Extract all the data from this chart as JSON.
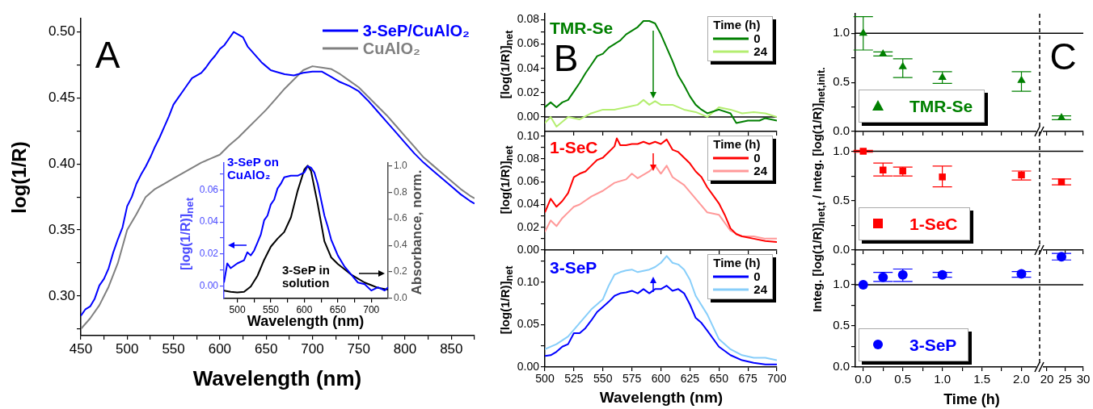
{
  "chart_data": [
    {
      "type": "line",
      "xlabel": "Wavelength (nm)",
      "ylabel": "log(1/R)",
      "annotations": [
        "A"
      ],
      "legend": "top right",
      "xlim": [
        450,
        875
      ],
      "ylim": [
        0.27,
        0.51
      ],
      "xticks": [
        450,
        {
          "value": 475,
          "label": null
        },
        500,
        {
          "value": 525,
          "label": null
        },
        550,
        {
          "value": 575,
          "label": null
        },
        600,
        {
          "value": 625,
          "label": null
        },
        650,
        {
          "value": 675,
          "label": null
        },
        700,
        {
          "value": 725,
          "label": null
        },
        750,
        {
          "value": 775,
          "label": null
        },
        800,
        {
          "value": 825,
          "label": null
        },
        850,
        {
          "value": 875,
          "label": null
        }
      ],
      "yticks": [
        {
          "value": 0.275,
          "label": null
        },
        {
          "value": 0.3,
          "label": "0.30"
        },
        {
          "value": 0.325,
          "label": null
        },
        {
          "value": 0.35,
          "label": "0.35"
        },
        {
          "value": 0.375,
          "label": null
        },
        {
          "value": 0.4,
          "label": "0.40"
        },
        {
          "value": 0.425,
          "label": null
        },
        {
          "value": 0.45,
          "label": "0.45"
        },
        {
          "value": 0.475,
          "label": null
        },
        {
          "value": 0.5,
          "label": "0.50"
        }
      ],
      "series": [
        {
          "name": "3-SeP/CuAlO₂",
          "color": "#0000ff",
          "x": [
            450,
            455,
            460,
            465,
            470,
            475,
            480,
            485,
            490,
            495,
            500,
            505,
            510,
            515,
            520,
            525,
            530,
            535,
            540,
            545,
            550,
            555,
            560,
            565,
            570,
            575,
            580,
            585,
            590,
            595,
            600,
            605,
            610,
            615,
            620,
            625,
            630,
            635,
            640,
            645,
            650,
            655,
            660,
            670,
            680,
            690,
            700,
            710,
            720,
            730,
            740,
            750,
            760,
            770,
            780,
            790,
            800,
            810,
            820,
            830,
            840,
            850,
            860,
            870,
            875
          ],
          "values": [
            0.285,
            0.29,
            0.292,
            0.298,
            0.308,
            0.313,
            0.321,
            0.333,
            0.343,
            0.352,
            0.368,
            0.375,
            0.385,
            0.392,
            0.398,
            0.405,
            0.413,
            0.42,
            0.428,
            0.436,
            0.445,
            0.45,
            0.455,
            0.46,
            0.465,
            0.467,
            0.469,
            0.473,
            0.478,
            0.482,
            0.487,
            0.49,
            0.495,
            0.5,
            0.498,
            0.496,
            0.489,
            0.485,
            0.481,
            0.477,
            0.474,
            0.471,
            0.47,
            0.468,
            0.467,
            0.469,
            0.47,
            0.47,
            0.466,
            0.462,
            0.459,
            0.455,
            0.448,
            0.44,
            0.432,
            0.424,
            0.416,
            0.408,
            0.401,
            0.395,
            0.389,
            0.383,
            0.377,
            0.372,
            0.37
          ]
        },
        {
          "name": "CuAlO₂",
          "color": "#808080",
          "x": [
            450,
            460,
            470,
            480,
            490,
            500,
            510,
            520,
            530,
            540,
            550,
            560,
            570,
            580,
            590,
            600,
            610,
            620,
            630,
            640,
            650,
            660,
            670,
            680,
            690,
            700,
            710,
            720,
            730,
            740,
            750,
            760,
            770,
            780,
            790,
            800,
            810,
            820,
            830,
            840,
            850,
            860,
            870,
            875
          ],
          "values": [
            0.275,
            0.283,
            0.293,
            0.307,
            0.325,
            0.35,
            0.362,
            0.375,
            0.381,
            0.385,
            0.389,
            0.393,
            0.397,
            0.401,
            0.404,
            0.407,
            0.414,
            0.42,
            0.427,
            0.434,
            0.441,
            0.449,
            0.457,
            0.464,
            0.471,
            0.474,
            0.473,
            0.472,
            0.468,
            0.463,
            0.458,
            0.451,
            0.444,
            0.437,
            0.429,
            0.421,
            0.413,
            0.405,
            0.399,
            0.393,
            0.387,
            0.381,
            0.376,
            0.374
          ]
        }
      ]
    },
    {
      "type": "line",
      "xlabel": "Wavelength (nm)",
      "ylabel": "[log(1/R)]$_{net}$",
      "y2label": "Absorbance, norm.",
      "xlim": [
        480,
        725
      ],
      "ylim": [
        -0.008,
        0.077
      ],
      "y2lim": [
        0,
        1.02
      ],
      "xticks": [
        500,
        {
          "value": 525,
          "label": null
        },
        550,
        {
          "value": 575,
          "label": null
        },
        600,
        {
          "value": 625,
          "label": null
        },
        650,
        {
          "value": 675,
          "label": null
        },
        700
      ],
      "yticks": [
        {
          "value": 0,
          "label": "0.00"
        },
        {
          "value": 0.01,
          "label": null
        },
        {
          "value": 0.02,
          "label": "0.02"
        },
        {
          "value": 0.03,
          "label": null
        },
        {
          "value": 0.04,
          "label": "0.04"
        },
        {
          "value": 0.05,
          "label": null
        },
        {
          "value": 0.06,
          "label": "0.06"
        },
        {
          "value": 0.07,
          "label": null
        }
      ],
      "y2ticks": [
        {
          "value": 0,
          "label": "0.0"
        },
        {
          "value": 0.2,
          "label": "0.2"
        },
        {
          "value": 0.4,
          "label": "0.4"
        },
        {
          "value": 0.6,
          "label": "0.6"
        },
        {
          "value": 0.8,
          "label": "0.8"
        },
        {
          "value": 1,
          "label": "1.0"
        }
      ],
      "series": [
        {
          "name": "3-SeP on CuAlO₂",
          "color": "#0000ff",
          "x": [
            480,
            485,
            490,
            500,
            510,
            515,
            520,
            525,
            530,
            535,
            540,
            545,
            550,
            555,
            560,
            565,
            570,
            580,
            590,
            600,
            605,
            610,
            615,
            620,
            625,
            630,
            635,
            640,
            645,
            650,
            660,
            670,
            680,
            690,
            700,
            710,
            720,
            725
          ],
          "values": [
            0.002,
            0.014,
            0.011,
            0.014,
            0.016,
            0.021,
            0.019,
            0.022,
            0.027,
            0.032,
            0.041,
            0.044,
            0.051,
            0.054,
            0.061,
            0.064,
            0.068,
            0.069,
            0.069,
            0.071,
            0.075,
            0.074,
            0.071,
            0.064,
            0.054,
            0.044,
            0.037,
            0.029,
            0.024,
            0.019,
            0.012,
            0.007,
            0.002,
            0.001,
            -0.003,
            -0.001,
            -0.003,
            -0.001
          ]
        },
        {
          "name": "3-SeP in solution",
          "color": "#000000",
          "axis": "y2",
          "x": [
            480,
            490,
            500,
            510,
            520,
            530,
            540,
            550,
            560,
            570,
            580,
            590,
            600,
            605,
            610,
            620,
            630,
            640,
            650,
            660,
            670,
            680,
            690,
            700,
            710,
            725
          ],
          "values": [
            0.06,
            0.05,
            0.046,
            0.05,
            0.09,
            0.17,
            0.29,
            0.39,
            0.45,
            0.5,
            0.61,
            0.81,
            0.97,
            1.0,
            0.96,
            0.71,
            0.43,
            0.31,
            0.26,
            0.22,
            0.18,
            0.15,
            0.12,
            0.1,
            0.08,
            0.066
          ]
        }
      ]
    },
    {
      "type": "line",
      "title": "TMR-Se",
      "ylabel": "[log(1/R)]$_{net}$",
      "annotations": [
        "B"
      ],
      "legend": "top right",
      "legend_title": "Time (h)",
      "tick_labels": "y",
      "xlim": [
        500,
        700
      ],
      "ylim": [
        -0.012,
        0.085
      ],
      "xticks": [
        {
          "value": 500,
          "label": null
        },
        {
          "value": 525,
          "label": null
        },
        {
          "value": 550,
          "label": null
        },
        {
          "value": 575,
          "label": null
        },
        {
          "value": 600,
          "label": null
        },
        {
          "value": 625,
          "label": null
        },
        {
          "value": 650,
          "label": null
        },
        {
          "value": 675,
          "label": null
        },
        {
          "value": 700,
          "label": null
        }
      ],
      "yticks": [
        {
          "value": 0,
          "label": "0.00"
        },
        {
          "value": 0.01,
          "label": null
        },
        {
          "value": 0.02,
          "label": "0.02"
        },
        {
          "value": 0.03,
          "label": null
        },
        {
          "value": 0.04,
          "label": "0.04"
        },
        {
          "value": 0.05,
          "label": null
        },
        {
          "value": 0.06,
          "label": "0.06"
        },
        {
          "value": 0.07,
          "label": null
        },
        {
          "value": 0.08,
          "label": "0.08"
        }
      ],
      "ref_lines": [
        {
          "axis": "y",
          "value": 0
        }
      ],
      "series": [
        {
          "name": "0",
          "color": "#007f00",
          "x": [
            500,
            505,
            510,
            515,
            520,
            525,
            530,
            535,
            540,
            545,
            550,
            555,
            560,
            565,
            570,
            575,
            580,
            585,
            590,
            595,
            600,
            605,
            610,
            615,
            620,
            625,
            630,
            635,
            640,
            650,
            660,
            665,
            675,
            685,
            690,
            700
          ],
          "values": [
            0.008,
            0.012,
            0.008,
            0.012,
            0.014,
            0.021,
            0.028,
            0.036,
            0.043,
            0.05,
            0.052,
            0.057,
            0.06,
            0.063,
            0.068,
            0.071,
            0.074,
            0.079,
            0.079,
            0.077,
            0.068,
            0.057,
            0.046,
            0.034,
            0.026,
            0.017,
            0.01,
            0.006,
            0.003,
            0.006,
            0.003,
            -0.005,
            -0.003,
            -0.003,
            -0.001,
            -0.003
          ]
        },
        {
          "name": "24",
          "color": "#b4ee70",
          "x": [
            500,
            505,
            510,
            520,
            530,
            540,
            550,
            560,
            570,
            580,
            585,
            590,
            595,
            600,
            610,
            620,
            630,
            640,
            650,
            660,
            670,
            680,
            690,
            700
          ],
          "values": [
            -0.005,
            0.0,
            -0.008,
            0.0,
            -0.002,
            0.003,
            0.006,
            0.006,
            0.008,
            0.01,
            0.014,
            0.01,
            0.013,
            0.01,
            0.01,
            0.006,
            0.004,
            0.0,
            0.008,
            0.006,
            0.003,
            0.004,
            0.003,
            0.0
          ]
        }
      ]
    },
    {
      "type": "line",
      "title": "1-SeC",
      "ylabel": "[log(1/R)]$_{net}$",
      "legend": "top right",
      "legend_title": "Time (h)",
      "tick_labels": "y",
      "xlim": [
        500,
        700
      ],
      "ylim": [
        0,
        0.104
      ],
      "xticks": [
        {
          "value": 500,
          "label": null
        },
        {
          "value": 525,
          "label": null
        },
        {
          "value": 550,
          "label": null
        },
        {
          "value": 575,
          "label": null
        },
        {
          "value": 600,
          "label": null
        },
        {
          "value": 625,
          "label": null
        },
        {
          "value": 650,
          "label": null
        },
        {
          "value": 675,
          "label": null
        },
        {
          "value": 700,
          "label": null
        }
      ],
      "yticks": [
        {
          "value": 0,
          "label": "0.00"
        },
        {
          "value": 0.01,
          "label": null
        },
        {
          "value": 0.02,
          "label": "0.02"
        },
        {
          "value": 0.03,
          "label": null
        },
        {
          "value": 0.04,
          "label": "0.04"
        },
        {
          "value": 0.05,
          "label": null
        },
        {
          "value": 0.06,
          "label": "0.06"
        },
        {
          "value": 0.07,
          "label": null
        },
        {
          "value": 0.08,
          "label": "0.08"
        },
        {
          "value": 0.09,
          "label": null
        },
        {
          "value": 0.1,
          "label": "0.10"
        }
      ],
      "series": [
        {
          "name": "0",
          "color": "#ff0000",
          "x": [
            500,
            505,
            510,
            515,
            520,
            525,
            530,
            535,
            540,
            545,
            550,
            555,
            560,
            562,
            565,
            570,
            575,
            580,
            585,
            590,
            595,
            600,
            605,
            610,
            615,
            620,
            625,
            630,
            635,
            640,
            645,
            650,
            655,
            660,
            665,
            670,
            680,
            690,
            700
          ],
          "values": [
            0.033,
            0.045,
            0.038,
            0.043,
            0.05,
            0.064,
            0.067,
            0.069,
            0.074,
            0.079,
            0.081,
            0.086,
            0.091,
            0.098,
            0.092,
            0.092,
            0.093,
            0.093,
            0.095,
            0.093,
            0.095,
            0.093,
            0.097,
            0.088,
            0.086,
            0.081,
            0.076,
            0.069,
            0.064,
            0.055,
            0.048,
            0.041,
            0.031,
            0.019,
            0.014,
            0.012,
            0.01,
            0.008,
            0.007
          ]
        },
        {
          "name": "24",
          "color": "#ff9999",
          "x": [
            500,
            505,
            510,
            515,
            520,
            525,
            530,
            540,
            550,
            560,
            570,
            575,
            580,
            590,
            595,
            600,
            605,
            610,
            620,
            630,
            640,
            650,
            660,
            670,
            680,
            690,
            700
          ],
          "values": [
            0.016,
            0.026,
            0.021,
            0.028,
            0.033,
            0.038,
            0.04,
            0.047,
            0.052,
            0.059,
            0.062,
            0.067,
            0.063,
            0.069,
            0.074,
            0.067,
            0.074,
            0.064,
            0.057,
            0.045,
            0.033,
            0.031,
            0.017,
            0.012,
            0.012,
            0.01,
            0.01
          ]
        }
      ]
    },
    {
      "type": "line",
      "title": "3-SeP",
      "xlabel": "Wavelength (nm)",
      "ylabel": "[log(1/R)]$_{net}$",
      "legend": "top right",
      "legend_title": "Time (h)",
      "xlim": [
        500,
        700
      ],
      "ylim": [
        0,
        0.138
      ],
      "xticks": [
        500,
        525,
        550,
        575,
        600,
        625,
        650,
        675,
        700
      ],
      "yticks": [
        {
          "value": 0,
          "label": "0.00"
        },
        {
          "value": 0.025,
          "label": null
        },
        {
          "value": 0.05,
          "label": "0.05"
        },
        {
          "value": 0.075,
          "label": null
        },
        {
          "value": 0.1,
          "label": "0.10"
        },
        {
          "value": 0.125,
          "label": null
        }
      ],
      "series": [
        {
          "name": "0",
          "color": "#0000ff",
          "x": [
            500,
            505,
            510,
            515,
            520,
            525,
            530,
            535,
            540,
            545,
            550,
            555,
            560,
            565,
            570,
            575,
            580,
            585,
            590,
            595,
            600,
            605,
            610,
            615,
            620,
            625,
            630,
            635,
            640,
            650,
            660,
            670,
            680,
            690,
            700
          ],
          "values": [
            0.013,
            0.014,
            0.018,
            0.024,
            0.027,
            0.04,
            0.04,
            0.046,
            0.055,
            0.065,
            0.071,
            0.077,
            0.084,
            0.087,
            0.088,
            0.09,
            0.087,
            0.092,
            0.087,
            0.092,
            0.092,
            0.096,
            0.09,
            0.092,
            0.087,
            0.074,
            0.058,
            0.052,
            0.043,
            0.024,
            0.014,
            0.008,
            0.005,
            0.003,
            0.003
          ]
        },
        {
          "name": "24",
          "color": "#87cefa",
          "x": [
            500,
            510,
            520,
            530,
            540,
            550,
            555,
            560,
            565,
            570,
            575,
            580,
            590,
            595,
            600,
            605,
            610,
            615,
            620,
            625,
            630,
            640,
            650,
            660,
            670,
            680,
            690,
            700
          ],
          "values": [
            0.021,
            0.027,
            0.036,
            0.052,
            0.068,
            0.08,
            0.096,
            0.109,
            0.112,
            0.114,
            0.115,
            0.112,
            0.115,
            0.118,
            0.123,
            0.131,
            0.123,
            0.121,
            0.115,
            0.103,
            0.084,
            0.062,
            0.033,
            0.021,
            0.014,
            0.011,
            0.011,
            0.008
          ]
        }
      ]
    },
    {
      "type": "scatter",
      "marker": "triangle",
      "legend": "bottom left",
      "tick_labels": "y",
      "xlim": [
        -0.1,
        2.23
      ],
      "ylim": [
        0,
        1.2
      ],
      "xticks": [
        {
          "value": 0,
          "label": null
        },
        {
          "value": 0.25,
          "label": null
        },
        {
          "value": 0.5,
          "label": null
        },
        {
          "value": 0.75,
          "label": null
        },
        {
          "value": 1,
          "label": null
        },
        {
          "value": 1.25,
          "label": null
        },
        {
          "value": 1.5,
          "label": null
        },
        {
          "value": 1.75,
          "label": null
        },
        {
          "value": 2,
          "label": null
        }
      ],
      "yticks": [
        {
          "value": 0,
          "label": "0.0"
        },
        {
          "value": 0.25,
          "label": null
        },
        {
          "value": 0.5,
          "label": "0.5"
        },
        {
          "value": 0.75,
          "label": null
        },
        {
          "value": 1,
          "label": "1.0"
        }
      ],
      "ref_lines": [
        {
          "axis": "y",
          "value": 1
        }
      ],
      "series": [
        {
          "name": "TMR-Se",
          "color": "#008000",
          "x": [
            0,
            0.25,
            0.5,
            1,
            2
          ],
          "values": [
            1.0,
            0.79,
            0.66,
            0.55,
            0.52
          ],
          "errors": [
            [
              0.83,
              1.17
            ],
            [
              0.77,
              0.81
            ],
            [
              0.55,
              0.74
            ],
            [
              0.49,
              0.61
            ],
            [
              0.41,
              0.61
            ]
          ]
        }
      ]
    },
    {
      "type": "scatter",
      "marker": "triangle",
      "annotations": [
        "C"
      ],
      "tick_labels": false,
      "xlim": [
        18,
        30
      ],
      "ylim": [
        0,
        1.2
      ],
      "xticks": [
        {
          "value": 20,
          "label": null
        },
        {
          "value": 25,
          "label": null
        },
        {
          "value": 30,
          "label": null
        }
      ],
      "ref_lines": [
        {
          "axis": "y",
          "value": 1
        },
        {
          "axis": "x",
          "value": 18,
          "line_style": "dashed"
        }
      ],
      "series": [
        {
          "color": "#008000",
          "x": [
            24
          ],
          "values": [
            0.14
          ],
          "errors": [
            [
              0.12,
              0.16
            ]
          ]
        }
      ]
    },
    {
      "type": "scatter",
      "marker": "square",
      "ylabel": "Integ. [log(1/R)]$_{net,t}$ / Integ. [log(1/R)]$_{net,init.}$",
      "legend": "bottom left",
      "tick_labels": "y",
      "xlim": [
        -0.1,
        2.23
      ],
      "ylim": [
        0,
        1.2
      ],
      "xticks": [
        {
          "value": 0,
          "label": null
        },
        {
          "value": 0.25,
          "label": null
        },
        {
          "value": 0.5,
          "label": null
        },
        {
          "value": 0.75,
          "label": null
        },
        {
          "value": 1,
          "label": null
        },
        {
          "value": 1.25,
          "label": null
        },
        {
          "value": 1.5,
          "label": null
        },
        {
          "value": 1.75,
          "label": null
        },
        {
          "value": 2,
          "label": null
        }
      ],
      "yticks": [
        {
          "value": 0,
          "label": "0.0"
        },
        {
          "value": 0.25,
          "label": null
        },
        {
          "value": 0.5,
          "label": "0.5"
        },
        {
          "value": 0.75,
          "label": null
        },
        {
          "value": 1,
          "label": "1.0"
        }
      ],
      "ref_lines": [
        {
          "axis": "y",
          "value": 1
        }
      ],
      "series": [
        {
          "name": "1-SeC",
          "color": "#ff0000",
          "x": [
            0,
            0.25,
            0.5,
            1,
            2
          ],
          "values": [
            1.0,
            0.81,
            0.8,
            0.74,
            0.76
          ],
          "errors": [
            [
              0.99,
              1.01
            ],
            [
              0.75,
              0.88
            ],
            [
              0.75,
              0.84
            ],
            [
              0.64,
              0.85
            ],
            [
              0.71,
              0.8
            ]
          ]
        }
      ]
    },
    {
      "type": "scatter",
      "marker": "square",
      "tick_labels": false,
      "xlim": [
        18,
        30
      ],
      "ylim": [
        0,
        1.2
      ],
      "xticks": [
        {
          "value": 20,
          "label": null
        },
        {
          "value": 25,
          "label": null
        },
        {
          "value": 30,
          "label": null
        }
      ],
      "ref_lines": [
        {
          "axis": "y",
          "value": 1
        },
        {
          "axis": "x",
          "value": 18,
          "line_style": "dashed"
        }
      ],
      "series": [
        {
          "color": "#ff0000",
          "x": [
            24
          ],
          "values": [
            0.69
          ],
          "errors": [
            [
              0.66,
              0.72
            ]
          ]
        }
      ]
    },
    {
      "type": "scatter",
      "marker": "circle",
      "xlabel": "Time (h)",
      "legend": "bottom left",
      "xlim": [
        -0.1,
        2.23
      ],
      "ylim": [
        0,
        1.42
      ],
      "xticks": [
        {
          "value": 0,
          "label": "0.0"
        },
        {
          "value": 0.25,
          "label": null
        },
        {
          "value": 0.5,
          "label": "0.5"
        },
        {
          "value": 0.75,
          "label": null
        },
        {
          "value": 1,
          "label": "1.0"
        },
        {
          "value": 1.25,
          "label": null
        },
        {
          "value": 1.5,
          "label": "1.5"
        },
        {
          "value": 1.75,
          "label": null
        },
        {
          "value": 2,
          "label": "2.0"
        }
      ],
      "yticks": [
        {
          "value": 0,
          "label": "0.0"
        },
        {
          "value": 0.25,
          "label": null
        },
        {
          "value": 0.5,
          "label": "0.5"
        },
        {
          "value": 0.75,
          "label": null
        },
        {
          "value": 1,
          "label": "1.0"
        },
        {
          "value": 1.25,
          "label": null
        }
      ],
      "ref_lines": [
        {
          "axis": "y",
          "value": 1
        }
      ],
      "series": [
        {
          "name": "3-SeP",
          "color": "#0000ff",
          "x": [
            0,
            0.25,
            0.5,
            1,
            2
          ],
          "values": [
            1.0,
            1.09,
            1.12,
            1.12,
            1.13
          ],
          "errors": [
            null,
            [
              1.04,
              1.15
            ],
            [
              1.04,
              1.19
            ],
            [
              1.09,
              1.15
            ],
            [
              1.09,
              1.16
            ]
          ]
        }
      ]
    },
    {
      "type": "scatter",
      "marker": "circle",
      "tick_labels": "x",
      "xlim": [
        18,
        30
      ],
      "ylim": [
        0,
        1.42
      ],
      "xticks": [
        20,
        25,
        30
      ],
      "ref_lines": [
        {
          "axis": "y",
          "value": 1
        },
        {
          "axis": "x",
          "value": 18,
          "line_style": "dashed"
        }
      ],
      "series": [
        {
          "color": "#0000ff",
          "x": [
            24
          ],
          "values": [
            1.34
          ],
          "errors": [
            [
              1.3,
              1.38
            ]
          ]
        }
      ]
    }
  ]
}
